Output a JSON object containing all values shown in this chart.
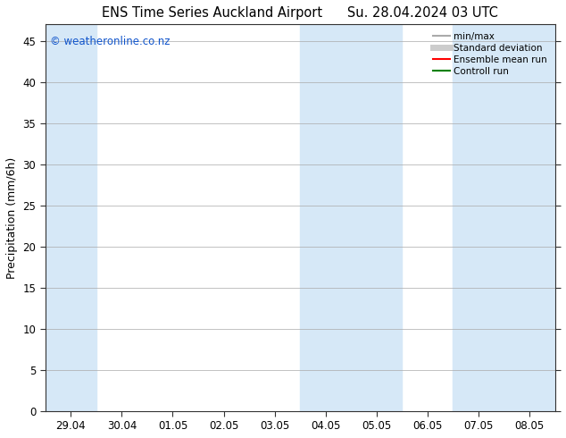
{
  "title_left": "ENS Time Series Auckland Airport",
  "title_right": "Su. 28.04.2024 03 UTC",
  "ylabel": "Precipitation (mm/6h)",
  "watermark": "© weatheronline.co.nz",
  "ylim": [
    0,
    47
  ],
  "yticks": [
    0,
    5,
    10,
    15,
    20,
    25,
    30,
    35,
    40,
    45
  ],
  "xtick_labels": [
    "29.04",
    "30.04",
    "01.05",
    "02.05",
    "03.05",
    "04.05",
    "05.05",
    "06.05",
    "07.05",
    "08.05"
  ],
  "band_color": "#d6e8f7",
  "background_color": "#ffffff",
  "legend_items": [
    {
      "label": "min/max",
      "color": "#aaaaaa",
      "lw": 1.5
    },
    {
      "label": "Standard deviation",
      "color": "#cccccc",
      "lw": 5
    },
    {
      "label": "Ensemble mean run",
      "color": "#ff0000",
      "lw": 1.5
    },
    {
      "label": "Controll run",
      "color": "#008000",
      "lw": 1.5
    }
  ]
}
